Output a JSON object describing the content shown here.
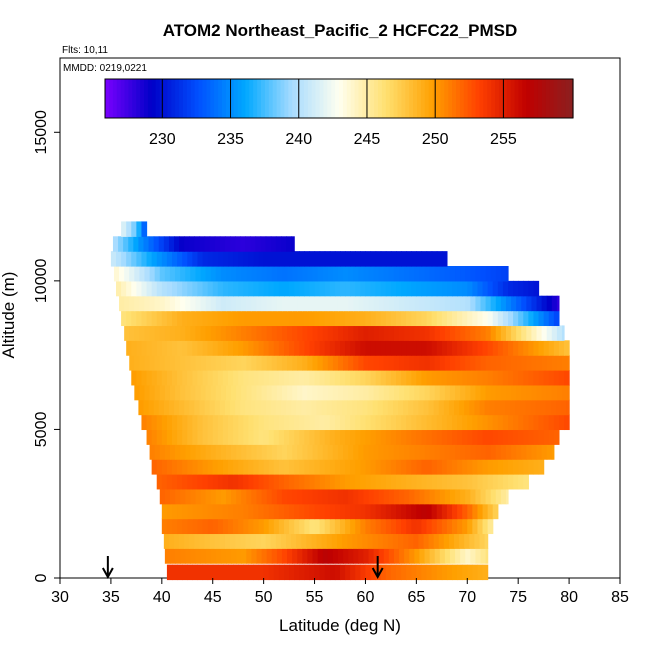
{
  "chart_data": {
    "type": "heatmap",
    "title": "ATOM2 Northeast_Pacific_2 HCFC22_PMSD",
    "subtitle_flights": "Flts: 10,11",
    "subtitle_dates": "MMDD: 0219,0221",
    "xlabel": "Latitude (deg N)",
    "ylabel": "Altitude (m)",
    "xlim": [
      30,
      85
    ],
    "ylim": [
      0,
      17500
    ],
    "x_ticks": [
      "30",
      "35",
      "40",
      "45",
      "50",
      "55",
      "60",
      "65",
      "70",
      "75",
      "80",
      "85"
    ],
    "y_ticks": [
      "0",
      "5000",
      "10000",
      "15000"
    ],
    "colorbar": {
      "range": [
        225.8,
        260.1
      ],
      "ticks": [
        "230",
        "235",
        "240",
        "245",
        "250",
        "255"
      ],
      "colors": [
        "#7a00ff",
        "#0000c8",
        "#0050ff",
        "#00a8ff",
        "#a8dcff",
        "#fffff0",
        "#ffe070",
        "#ffa000",
        "#ff4000",
        "#c00000",
        "#8b2020"
      ]
    },
    "grid": false,
    "legend": "colorbar-top",
    "markers": {
      "arrow_latitudes": [
        34.7,
        61.2
      ]
    },
    "profile_levels": [
      {
        "alt": 200,
        "lat_min": 40.5,
        "lat_max": 72.0,
        "values": [
          [
            40.5,
            254
          ],
          [
            50,
            254
          ],
          [
            57,
            256
          ],
          [
            62,
            252
          ],
          [
            68,
            250
          ],
          [
            72,
            249
          ]
        ]
      },
      {
        "alt": 750,
        "lat_min": 40.3,
        "lat_max": 72.0,
        "values": [
          [
            40.3,
            251
          ],
          [
            48,
            250
          ],
          [
            52,
            253
          ],
          [
            56,
            257
          ],
          [
            60,
            255
          ],
          [
            65,
            250
          ],
          [
            70,
            244
          ],
          [
            72,
            246
          ]
        ]
      },
      {
        "alt": 1250,
        "lat_min": 40.2,
        "lat_max": 72.0,
        "values": [
          [
            40.2,
            249
          ],
          [
            45,
            248
          ],
          [
            50,
            247
          ],
          [
            58,
            250
          ],
          [
            65,
            252
          ],
          [
            72,
            247
          ]
        ]
      },
      {
        "alt": 1750,
        "lat_min": 40.0,
        "lat_max": 72.5,
        "values": [
          [
            40,
            251
          ],
          [
            45,
            252
          ],
          [
            50,
            250
          ],
          [
            55,
            246
          ],
          [
            60,
            251
          ],
          [
            65,
            254
          ],
          [
            70,
            250
          ],
          [
            72.5,
            245
          ]
        ]
      },
      {
        "alt": 2250,
        "lat_min": 40.0,
        "lat_max": 73.0,
        "values": [
          [
            40,
            250
          ],
          [
            48,
            251
          ],
          [
            55,
            253
          ],
          [
            60,
            254
          ],
          [
            66,
            257
          ],
          [
            70,
            252
          ],
          [
            73,
            247
          ]
        ]
      },
      {
        "alt": 2750,
        "lat_min": 39.8,
        "lat_max": 74.0,
        "values": [
          [
            39.8,
            252
          ],
          [
            46,
            250
          ],
          [
            52,
            253
          ],
          [
            58,
            254
          ],
          [
            64,
            252
          ],
          [
            70,
            249
          ],
          [
            74,
            245
          ]
        ]
      },
      {
        "alt": 3250,
        "lat_min": 39.5,
        "lat_max": 76.0,
        "values": [
          [
            39.5,
            252
          ],
          [
            47,
            254
          ],
          [
            52,
            252
          ],
          [
            58,
            250
          ],
          [
            64,
            249
          ],
          [
            70,
            248
          ],
          [
            76,
            246
          ]
        ]
      },
      {
        "alt": 3750,
        "lat_min": 39.0,
        "lat_max": 77.5,
        "values": [
          [
            39,
            252
          ],
          [
            45,
            250
          ],
          [
            52,
            248
          ],
          [
            60,
            250
          ],
          [
            66,
            252
          ],
          [
            72,
            250
          ],
          [
            77.5,
            249
          ]
        ]
      },
      {
        "alt": 4250,
        "lat_min": 38.8,
        "lat_max": 78.5,
        "values": [
          [
            38.8,
            251
          ],
          [
            45,
            249
          ],
          [
            52,
            247
          ],
          [
            60,
            250
          ],
          [
            66,
            251
          ],
          [
            72,
            252
          ],
          [
            78.5,
            250
          ]
        ]
      },
      {
        "alt": 4750,
        "lat_min": 38.5,
        "lat_max": 79.0,
        "values": [
          [
            38.5,
            251
          ],
          [
            44,
            248
          ],
          [
            50,
            246
          ],
          [
            57,
            249
          ],
          [
            64,
            251
          ],
          [
            72,
            253
          ],
          [
            79,
            252
          ]
        ]
      },
      {
        "alt": 5250,
        "lat_min": 38.0,
        "lat_max": 80.0,
        "values": [
          [
            38,
            251
          ],
          [
            44,
            248
          ],
          [
            50,
            246
          ],
          [
            56,
            245
          ],
          [
            62,
            247
          ],
          [
            68,
            249
          ],
          [
            74,
            251
          ],
          [
            80,
            253
          ]
        ]
      },
      {
        "alt": 5750,
        "lat_min": 37.7,
        "lat_max": 80.0,
        "values": [
          [
            37.7,
            250
          ],
          [
            43,
            248
          ],
          [
            48,
            246
          ],
          [
            54,
            245
          ],
          [
            60,
            246
          ],
          [
            66,
            248
          ],
          [
            72,
            251
          ],
          [
            80,
            252
          ]
        ]
      },
      {
        "alt": 6250,
        "lat_min": 37.3,
        "lat_max": 80.0,
        "values": [
          [
            37.3,
            250
          ],
          [
            42,
            248
          ],
          [
            48,
            246
          ],
          [
            54,
            244
          ],
          [
            60,
            245
          ],
          [
            66,
            247
          ],
          [
            72,
            250
          ],
          [
            80,
            251
          ]
        ]
      },
      {
        "alt": 6750,
        "lat_min": 37.0,
        "lat_max": 80.0,
        "values": [
          [
            37,
            250
          ],
          [
            42,
            248
          ],
          [
            48,
            246
          ],
          [
            54,
            245
          ],
          [
            60,
            247
          ],
          [
            66,
            250
          ],
          [
            72,
            251
          ],
          [
            80,
            253
          ]
        ]
      },
      {
        "alt": 7250,
        "lat_min": 36.8,
        "lat_max": 80.0,
        "values": [
          [
            36.8,
            249
          ],
          [
            42,
            248
          ],
          [
            48,
            247
          ],
          [
            54,
            249
          ],
          [
            60,
            253
          ],
          [
            66,
            254
          ],
          [
            72,
            252
          ],
          [
            80,
            251
          ]
        ]
      },
      {
        "alt": 7750,
        "lat_min": 36.5,
        "lat_max": 80.0,
        "values": [
          [
            36.5,
            249
          ],
          [
            42,
            248
          ],
          [
            48,
            250
          ],
          [
            54,
            253
          ],
          [
            60,
            256
          ],
          [
            66,
            256
          ],
          [
            72,
            253
          ],
          [
            80,
            248
          ]
        ]
      },
      {
        "alt": 8250,
        "lat_min": 36.3,
        "lat_max": 79.5,
        "values": [
          [
            36.3,
            248
          ],
          [
            42,
            249
          ],
          [
            48,
            251
          ],
          [
            54,
            253
          ],
          [
            60,
            255
          ],
          [
            66,
            254
          ],
          [
            72,
            251
          ],
          [
            79.5,
            240
          ]
        ]
      },
      {
        "alt": 8750,
        "lat_min": 36.0,
        "lat_max": 79.0,
        "values": [
          [
            36,
            246
          ],
          [
            42,
            249
          ],
          [
            48,
            250
          ],
          [
            54,
            250
          ],
          [
            60,
            249
          ],
          [
            66,
            247
          ],
          [
            72,
            243
          ],
          [
            79,
            232
          ]
        ]
      },
      {
        "alt": 9250,
        "lat_min": 35.8,
        "lat_max": 79.0,
        "values": [
          [
            35.8,
            245
          ],
          [
            40,
            244
          ],
          [
            46,
            241
          ],
          [
            52,
            242
          ],
          [
            58,
            242
          ],
          [
            64,
            241
          ],
          [
            70,
            240
          ],
          [
            76,
            232
          ],
          [
            79,
            228
          ]
        ]
      },
      {
        "alt": 9750,
        "lat_min": 35.5,
        "lat_max": 77.0,
        "values": [
          [
            35.5,
            245
          ],
          [
            40,
            240
          ],
          [
            46,
            237
          ],
          [
            52,
            236
          ],
          [
            58,
            237
          ],
          [
            64,
            236
          ],
          [
            70,
            235
          ],
          [
            74,
            231
          ],
          [
            77,
            230
          ]
        ]
      },
      {
        "alt": 10250,
        "lat_min": 35.3,
        "lat_max": 74.0,
        "values": [
          [
            35.3,
            244
          ],
          [
            40,
            238
          ],
          [
            46,
            235
          ],
          [
            52,
            234
          ],
          [
            58,
            235
          ],
          [
            64,
            234
          ],
          [
            70,
            233
          ],
          [
            74,
            232
          ]
        ]
      },
      {
        "alt": 10750,
        "lat_min": 35.0,
        "lat_max": 68.0,
        "values": [
          [
            35,
            241
          ],
          [
            39,
            236
          ],
          [
            44,
            231
          ],
          [
            50,
            230
          ],
          [
            56,
            230
          ],
          [
            62,
            230
          ],
          [
            68,
            230
          ]
        ]
      },
      {
        "alt": 11250,
        "lat_min": 35.2,
        "lat_max": 53.0,
        "values": [
          [
            35.2,
            240
          ],
          [
            38,
            235
          ],
          [
            42,
            229
          ],
          [
            48,
            228
          ],
          [
            53,
            229
          ]
        ]
      },
      {
        "alt": 11750,
        "lat_min": 36.0,
        "lat_max": 38.5,
        "values": [
          [
            36,
            242
          ],
          [
            37.5,
            238
          ],
          [
            38.5,
            232
          ]
        ]
      }
    ]
  }
}
